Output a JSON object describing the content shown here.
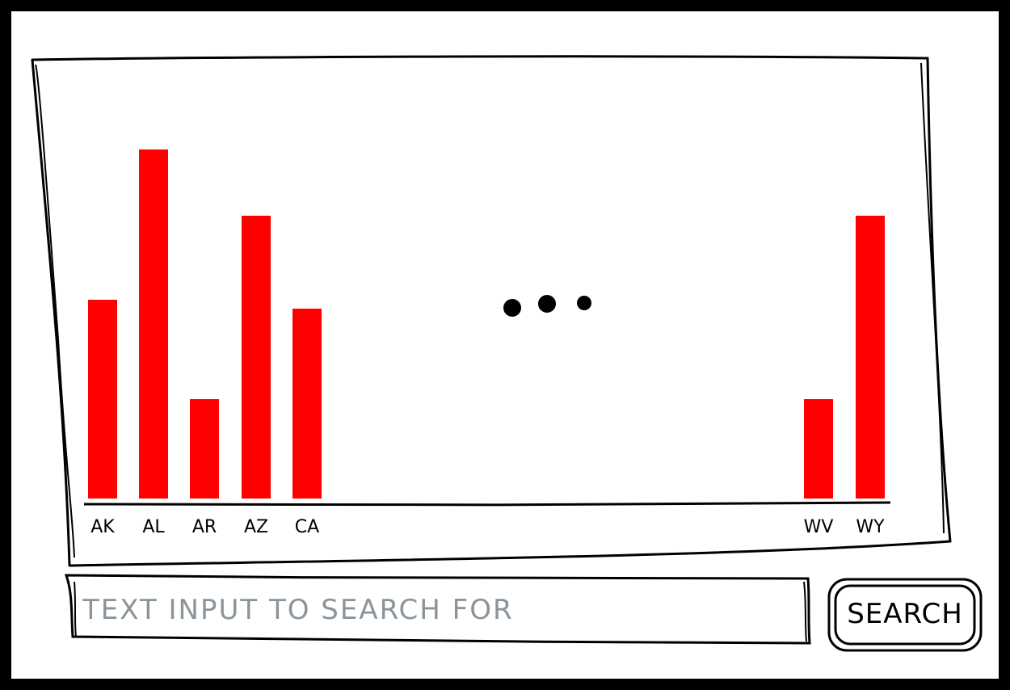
{
  "search": {
    "placeholder": "TEXT INPUT TO SEARCH FOR",
    "button_label": "SEARCH"
  },
  "ellipsis": "• • •",
  "colors": {
    "bar": "#ff0000",
    "ink": "#000000",
    "placeholder": "#8a949b"
  },
  "chart_data": {
    "type": "bar",
    "title": "",
    "xlabel": "",
    "ylabel": "",
    "categories": [
      "AK",
      "AL",
      "AR",
      "AZ",
      "CA",
      "WV",
      "WY"
    ],
    "values": [
      246,
      432,
      123,
      350,
      235,
      123,
      350
    ],
    "ylim": [
      0,
      432
    ],
    "grid": false,
    "legend": "none"
  }
}
